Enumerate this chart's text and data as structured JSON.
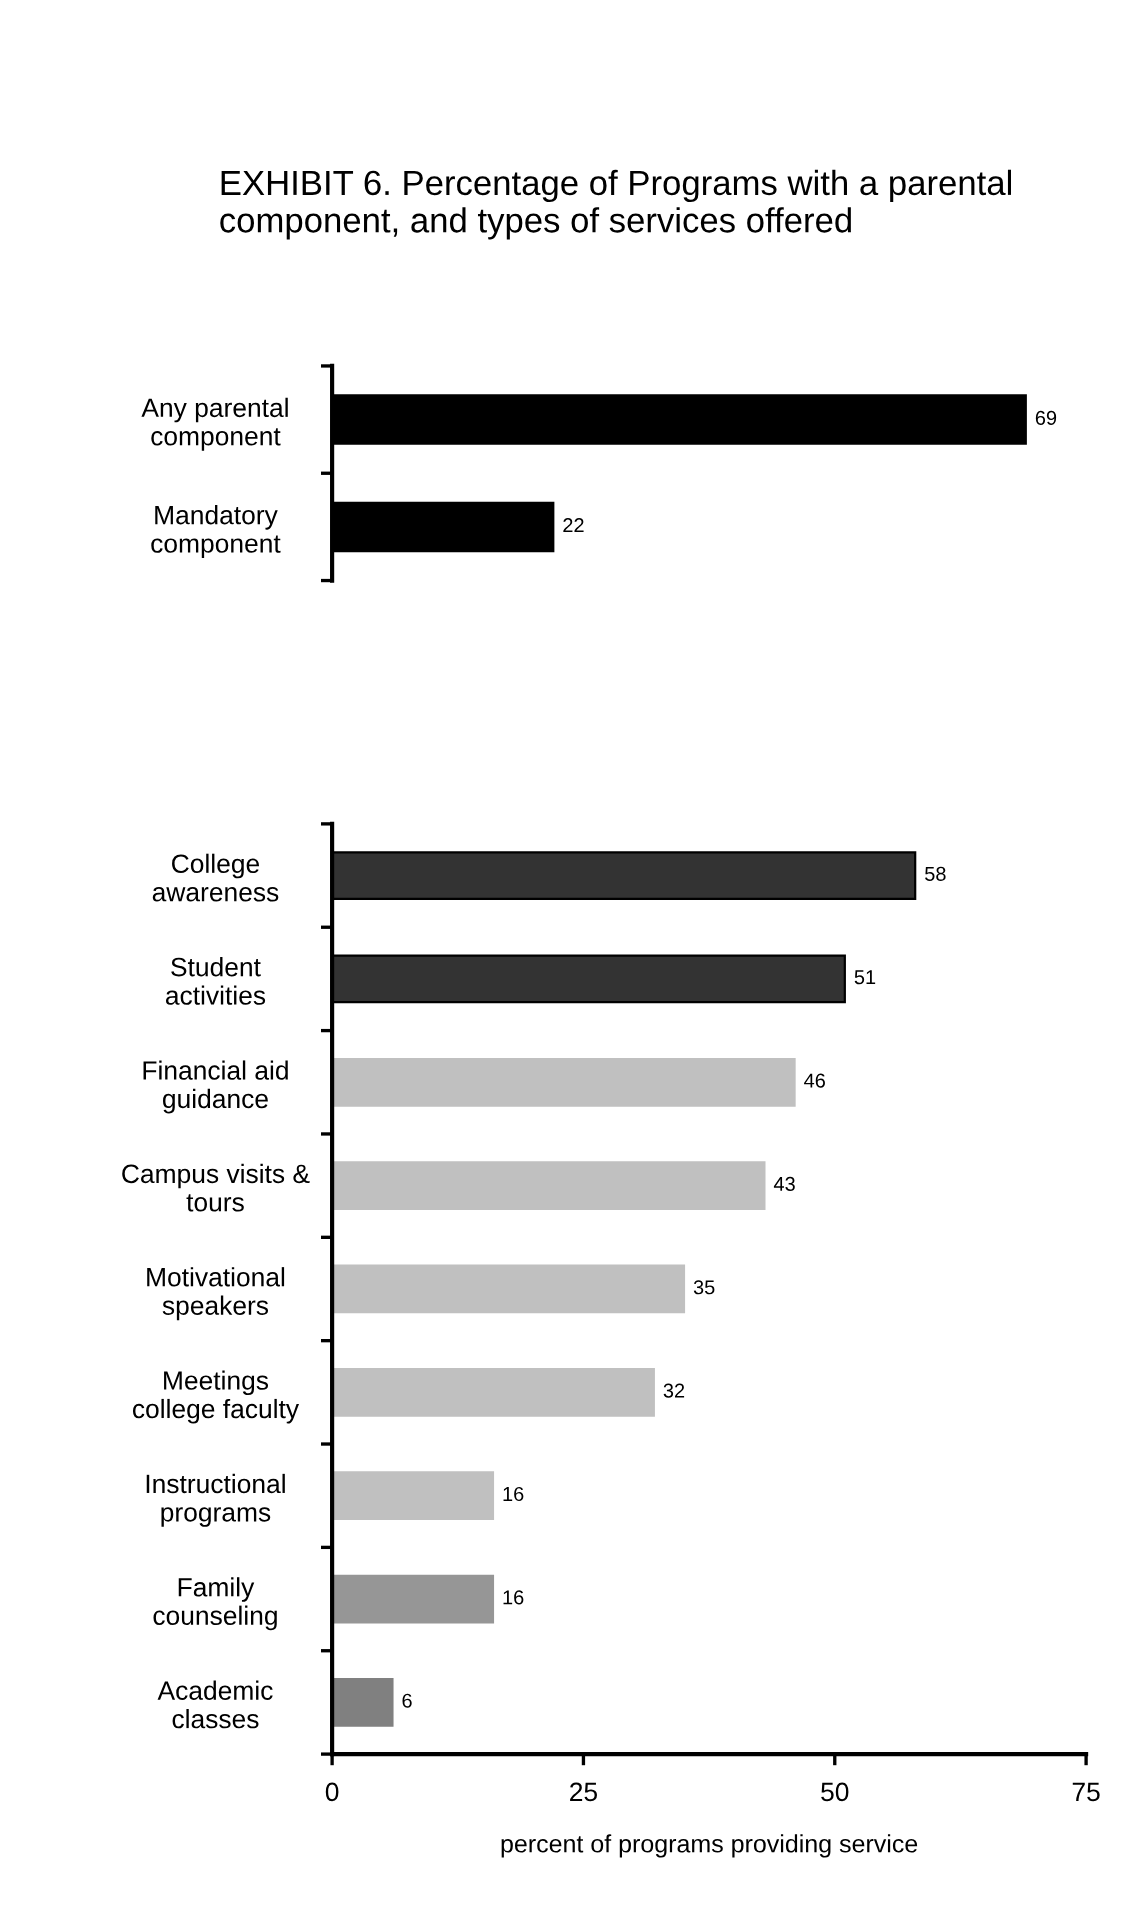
{
  "chart_data": [
    {
      "type": "bar",
      "orientation": "horizontal",
      "title": "EXHIBIT 6. Percentage of Programs with a parental component, and types of services offered",
      "categories": [
        "Any parental\ncomponent",
        "Mandatory\ncomponent"
      ],
      "values": [
        69,
        22
      ],
      "colors": [
        "#000000",
        "#000000"
      ],
      "xlim": [
        0,
        75
      ],
      "tick_labels": "y",
      "data_labels": true,
      "grid": false,
      "legend": false
    },
    {
      "type": "bar",
      "orientation": "horizontal",
      "xlabel": "percent of programs providing service",
      "categories": [
        "College\nawareness",
        "Student\nactivities",
        "Financial aid\nguidance",
        "Campus visits &\ntours",
        "Motivational\nspeakers",
        "Meetings\ncollege faculty",
        "Instructional\nprograms",
        "Family\ncounseling",
        "Academic\nclasses"
      ],
      "values": [
        58,
        51,
        46,
        43,
        35,
        32,
        16,
        16,
        6
      ],
      "colors": [
        "#333333",
        "#333333",
        "#c0c0c0",
        "#c0c0c0",
        "#c0c0c0",
        "#c0c0c0",
        "#c0c0c0",
        "#969696",
        "#808080"
      ],
      "xlim": [
        0,
        75
      ],
      "xticks": [
        0,
        25,
        50,
        75
      ],
      "data_labels": true,
      "grid": false,
      "legend": false
    }
  ]
}
